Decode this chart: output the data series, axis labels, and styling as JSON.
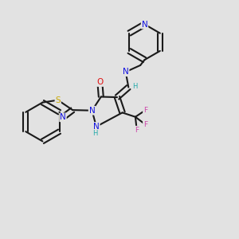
{
  "bg_color": "#e2e2e2",
  "bond_color": "#1a1a1a",
  "bond_width": 1.5,
  "atom_colors": {
    "N": "#1010e0",
    "O": "#e01010",
    "S": "#c8a800",
    "F": "#cc44aa",
    "H": "#22aaaa",
    "C": "#1a1a1a"
  },
  "font_size": 7.0
}
